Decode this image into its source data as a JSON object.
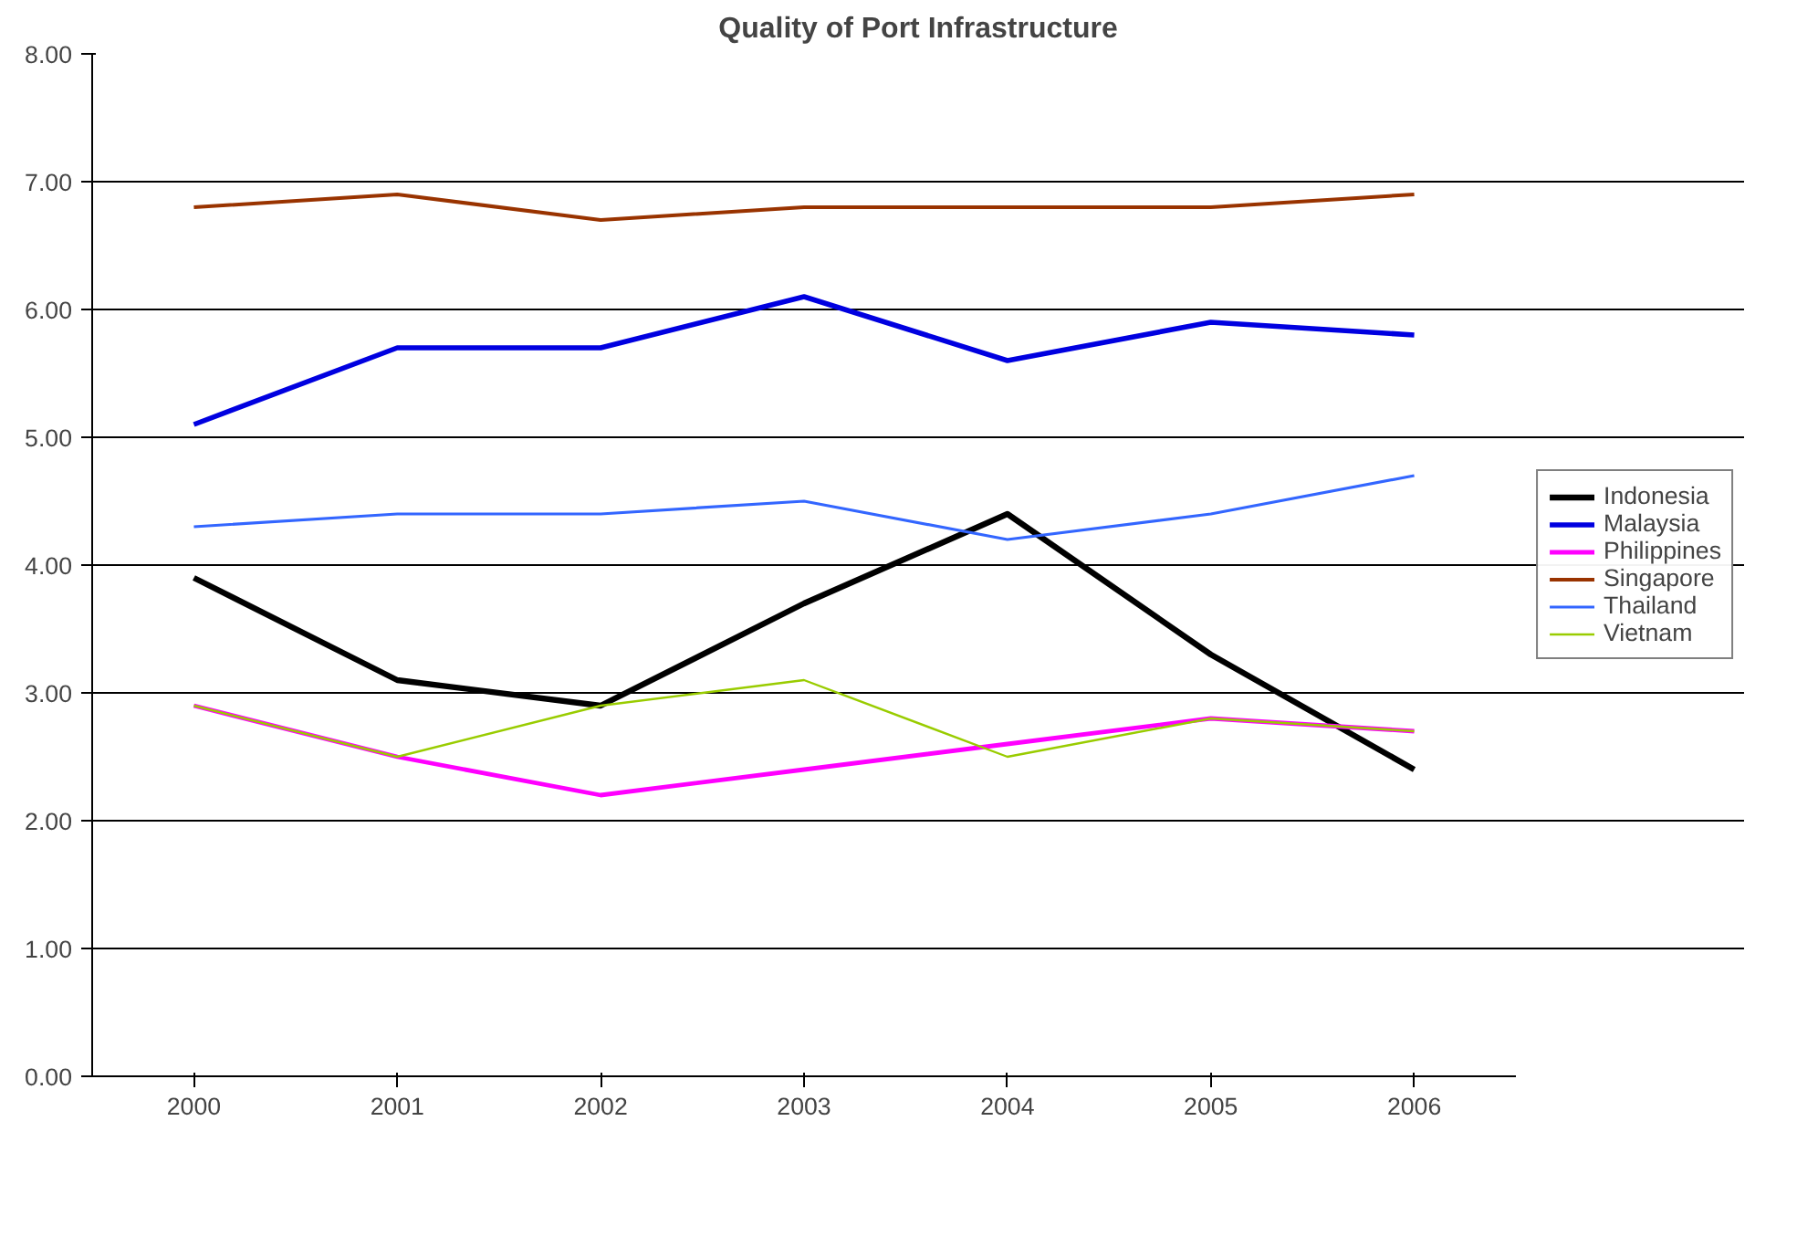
{
  "chart_data": {
    "type": "line",
    "title": "Quality of Port Infrastructure",
    "categories": [
      "2000",
      "2001",
      "2002",
      "2003",
      "2004",
      "2005",
      "2006"
    ],
    "series": [
      {
        "name": "Indonesia",
        "color": "#000000",
        "values": [
          3.9,
          3.1,
          2.9,
          3.7,
          4.4,
          3.3,
          2.4
        ]
      },
      {
        "name": "Malaysia",
        "color": "#0000e0",
        "values": [
          5.1,
          5.7,
          5.7,
          6.1,
          5.6,
          5.9,
          5.8
        ]
      },
      {
        "name": "Philippines",
        "color": "#ff00ff",
        "values": [
          2.9,
          2.5,
          2.2,
          2.4,
          2.6,
          2.8,
          2.7
        ]
      },
      {
        "name": "Singapore",
        "color": "#993300",
        "values": [
          6.8,
          6.9,
          6.7,
          6.8,
          6.8,
          6.8,
          6.9
        ]
      },
      {
        "name": "Thailand",
        "color": "#3366ff",
        "values": [
          4.3,
          4.4,
          4.4,
          4.5,
          4.2,
          4.4,
          4.7
        ]
      },
      {
        "name": "Vietnam",
        "color": "#99cc00",
        "values": [
          2.9,
          2.5,
          2.9,
          3.1,
          2.5,
          2.8,
          2.7
        ]
      }
    ],
    "ylim": [
      0,
      8
    ],
    "yticks": [
      {
        "value": 0,
        "label": "0.00"
      },
      {
        "value": 1,
        "label": "1.00"
      },
      {
        "value": 2,
        "label": "2.00"
      },
      {
        "value": 3,
        "label": "3.00"
      },
      {
        "value": 4,
        "label": "4.00"
      },
      {
        "value": 5,
        "label": "5.00"
      },
      {
        "value": 6,
        "label": "6.00"
      },
      {
        "value": 7,
        "label": "7.00"
      },
      {
        "value": 8,
        "label": "8.00"
      }
    ],
    "grid": "y",
    "legend": "right",
    "marker": "none",
    "line_style": "solid"
  }
}
